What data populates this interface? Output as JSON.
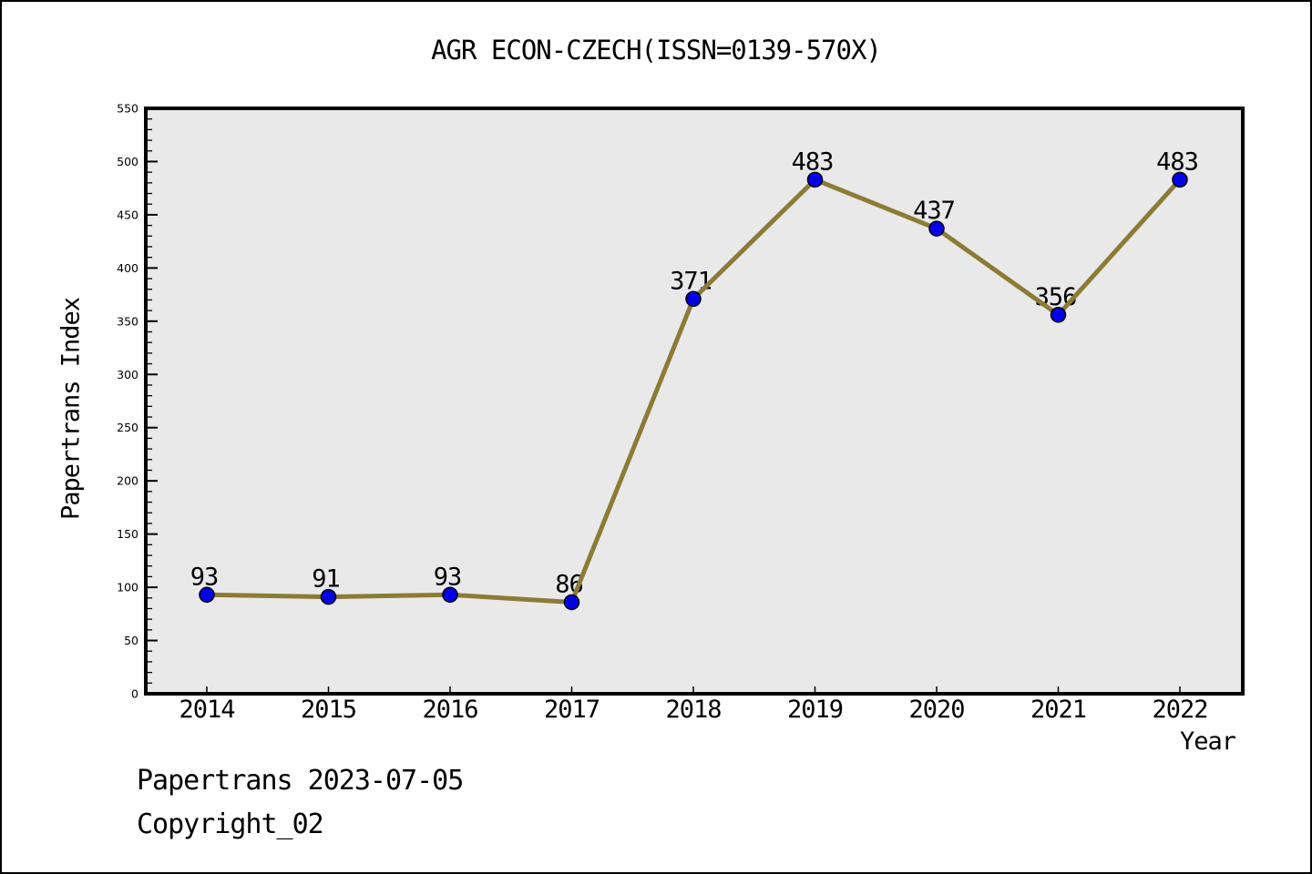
{
  "footer": {
    "line1": "Papertrans 2023-07-05",
    "line2": "Copyright_02"
  },
  "chart_data": {
    "type": "line",
    "title": "AGR ECON-CZECH(ISSN=0139-570X)",
    "x": [
      2014,
      2015,
      2016,
      2017,
      2018,
      2019,
      2020,
      2021,
      2022
    ],
    "series": [
      {
        "name": "Papertrans Index",
        "values": [
          93,
          91,
          93,
          86,
          371,
          483,
          437,
          356,
          483
        ]
      }
    ],
    "xlabel": "Year",
    "ylabel": "Papertrans Index",
    "ylim": [
      0,
      550
    ],
    "ytick_major": 50,
    "ytick_minor": 10,
    "grid": false,
    "legend": "none",
    "point_labels": true,
    "colors": {
      "line": "#8C7B33",
      "marker_fill": "#0000EE",
      "marker_edge": "#000000",
      "plot_background": "#E9E9E9",
      "frame": "#000000",
      "text": "#000000",
      "figure_background": "#FFFFFF"
    }
  }
}
